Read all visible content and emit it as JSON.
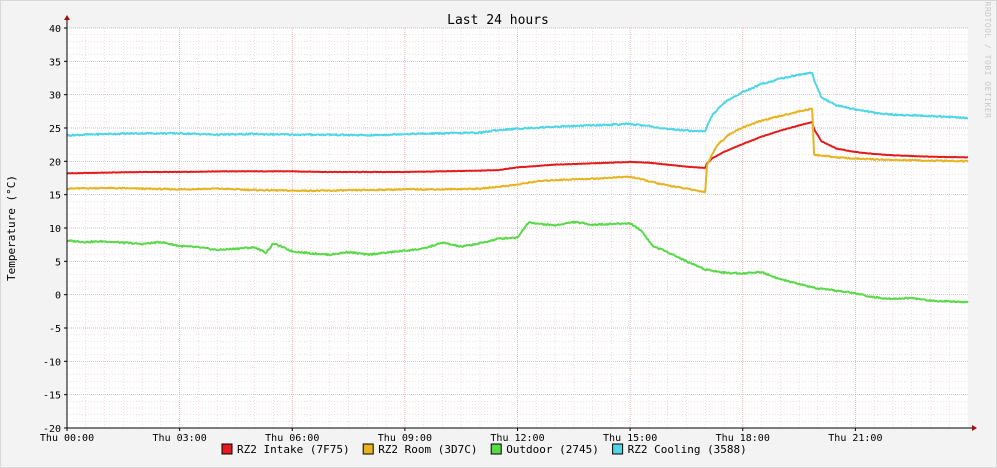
{
  "chart_data": {
    "type": "line",
    "title": "Last 24 hours",
    "ylabel": "Temperature (°C)",
    "watermark": "RRDTOOL / TOBI OETIKER",
    "ylim": [
      -20,
      40
    ],
    "xlim": [
      0,
      24
    ],
    "y_ticks": [
      40,
      35,
      30,
      25,
      20,
      15,
      10,
      5,
      0,
      -5,
      -10,
      -15,
      -20
    ],
    "x_ticks": [
      {
        "x": 0,
        "label": "Thu 00:00"
      },
      {
        "x": 3,
        "label": "Thu 03:00"
      },
      {
        "x": 6,
        "label": "Thu 06:00"
      },
      {
        "x": 9,
        "label": "Thu 09:00"
      },
      {
        "x": 12,
        "label": "Thu 12:00"
      },
      {
        "x": 15,
        "label": "Thu 15:00"
      },
      {
        "x": 18,
        "label": "Thu 18:00"
      },
      {
        "x": 21,
        "label": "Thu 21:00"
      }
    ],
    "grid": true,
    "legend_position": "bottom",
    "series": [
      {
        "name": "RZ2 Intake (7F75)",
        "color": "#e41a1c",
        "points": [
          [
            0,
            18.2
          ],
          [
            1,
            18.3
          ],
          [
            2,
            18.4
          ],
          [
            3,
            18.4
          ],
          [
            4,
            18.5
          ],
          [
            5,
            18.5
          ],
          [
            6,
            18.5
          ],
          [
            7,
            18.4
          ],
          [
            8,
            18.4
          ],
          [
            9,
            18.4
          ],
          [
            10,
            18.5
          ],
          [
            11,
            18.6
          ],
          [
            11.5,
            18.7
          ],
          [
            12,
            19.1
          ],
          [
            12.5,
            19.3
          ],
          [
            13,
            19.5
          ],
          [
            14,
            19.7
          ],
          [
            15,
            19.9
          ],
          [
            15.5,
            19.8
          ],
          [
            16,
            19.5
          ],
          [
            16.5,
            19.2
          ],
          [
            17,
            19.0
          ],
          [
            17.05,
            19.7
          ],
          [
            17.2,
            20.5
          ],
          [
            17.5,
            21.4
          ],
          [
            18,
            22.6
          ],
          [
            18.5,
            23.7
          ],
          [
            19,
            24.6
          ],
          [
            19.5,
            25.4
          ],
          [
            19.85,
            25.9
          ],
          [
            19.9,
            24.8
          ],
          [
            20.1,
            23.0
          ],
          [
            20.5,
            21.9
          ],
          [
            21,
            21.4
          ],
          [
            21.5,
            21.1
          ],
          [
            22,
            20.9
          ],
          [
            23,
            20.7
          ],
          [
            24,
            20.6
          ]
        ]
      },
      {
        "name": "RZ2 Room (3D7C)",
        "color": "#e6b422",
        "points": [
          [
            0,
            15.9
          ],
          [
            1,
            16.0
          ],
          [
            2,
            15.9
          ],
          [
            3,
            15.8
          ],
          [
            4,
            15.9
          ],
          [
            5,
            15.7
          ],
          [
            6,
            15.6
          ],
          [
            7,
            15.6
          ],
          [
            8,
            15.7
          ],
          [
            9,
            15.8
          ],
          [
            10,
            15.8
          ],
          [
            11,
            15.9
          ],
          [
            11.5,
            16.2
          ],
          [
            12,
            16.5
          ],
          [
            12.5,
            17.0
          ],
          [
            13,
            17.2
          ],
          [
            14,
            17.4
          ],
          [
            15,
            17.7
          ],
          [
            15.3,
            17.3
          ],
          [
            15.8,
            16.6
          ],
          [
            16.5,
            15.9
          ],
          [
            17,
            15.4
          ],
          [
            17.05,
            19.5
          ],
          [
            17.3,
            22.3
          ],
          [
            17.6,
            23.9
          ],
          [
            18,
            25.1
          ],
          [
            18.5,
            26.1
          ],
          [
            19,
            26.8
          ],
          [
            19.5,
            27.5
          ],
          [
            19.85,
            27.9
          ],
          [
            19.9,
            21.0
          ],
          [
            20.5,
            20.6
          ],
          [
            21,
            20.4
          ],
          [
            21.5,
            20.3
          ],
          [
            22,
            20.2
          ],
          [
            23,
            20.1
          ],
          [
            24,
            20.0
          ]
        ]
      },
      {
        "name": "Outdoor (2745)",
        "color": "#5ad84a",
        "points": [
          [
            0,
            8.1
          ],
          [
            0.5,
            7.9
          ],
          [
            1,
            8.0
          ],
          [
            1.5,
            7.8
          ],
          [
            2,
            7.6
          ],
          [
            2.5,
            7.9
          ],
          [
            3,
            7.3
          ],
          [
            3.5,
            7.1
          ],
          [
            4,
            6.7
          ],
          [
            4.5,
            6.9
          ],
          [
            5,
            7.1
          ],
          [
            5.3,
            6.3
          ],
          [
            5.5,
            7.7
          ],
          [
            6,
            6.5
          ],
          [
            6.5,
            6.2
          ],
          [
            7,
            6.0
          ],
          [
            7.5,
            6.4
          ],
          [
            8,
            6.0
          ],
          [
            8.5,
            6.3
          ],
          [
            9,
            6.6
          ],
          [
            9.5,
            6.9
          ],
          [
            10,
            7.8
          ],
          [
            10.5,
            7.2
          ],
          [
            11,
            7.7
          ],
          [
            11.5,
            8.4
          ],
          [
            12,
            8.6
          ],
          [
            12.3,
            10.9
          ],
          [
            12.6,
            10.6
          ],
          [
            13,
            10.4
          ],
          [
            13.5,
            10.9
          ],
          [
            14,
            10.5
          ],
          [
            14.5,
            10.6
          ],
          [
            15,
            10.7
          ],
          [
            15.3,
            9.6
          ],
          [
            15.6,
            7.3
          ],
          [
            16,
            6.4
          ],
          [
            16.5,
            5.0
          ],
          [
            17,
            3.8
          ],
          [
            17.5,
            3.3
          ],
          [
            18,
            3.2
          ],
          [
            18.5,
            3.4
          ],
          [
            19,
            2.3
          ],
          [
            19.5,
            1.6
          ],
          [
            20,
            0.9
          ],
          [
            20.5,
            0.6
          ],
          [
            21,
            0.2
          ],
          [
            21.5,
            -0.4
          ],
          [
            22,
            -0.6
          ],
          [
            22.5,
            -0.5
          ],
          [
            23,
            -0.9
          ],
          [
            23.5,
            -1.0
          ],
          [
            24,
            -1.1
          ]
        ]
      },
      {
        "name": "RZ2 Cooling (3588)",
        "color": "#4fd6e6",
        "points": [
          [
            0,
            23.9
          ],
          [
            1,
            24.1
          ],
          [
            2,
            24.2
          ],
          [
            3,
            24.2
          ],
          [
            4,
            24.0
          ],
          [
            5,
            24.1
          ],
          [
            6,
            24.0
          ],
          [
            7,
            24.0
          ],
          [
            8,
            23.9
          ],
          [
            9,
            24.1
          ],
          [
            10,
            24.2
          ],
          [
            11,
            24.3
          ],
          [
            11.5,
            24.7
          ],
          [
            12,
            24.9
          ],
          [
            13,
            25.2
          ],
          [
            14,
            25.4
          ],
          [
            15,
            25.6
          ],
          [
            15.5,
            25.3
          ],
          [
            16,
            24.8
          ],
          [
            17,
            24.5
          ],
          [
            17.05,
            25.3
          ],
          [
            17.2,
            27.0
          ],
          [
            17.5,
            28.8
          ],
          [
            18,
            30.4
          ],
          [
            18.5,
            31.6
          ],
          [
            19,
            32.4
          ],
          [
            19.5,
            33.0
          ],
          [
            19.85,
            33.3
          ],
          [
            19.9,
            32.2
          ],
          [
            20.1,
            29.5
          ],
          [
            20.5,
            28.4
          ],
          [
            21,
            27.8
          ],
          [
            21.5,
            27.3
          ],
          [
            22,
            27.0
          ],
          [
            23,
            26.8
          ],
          [
            24,
            26.5
          ]
        ]
      }
    ]
  }
}
